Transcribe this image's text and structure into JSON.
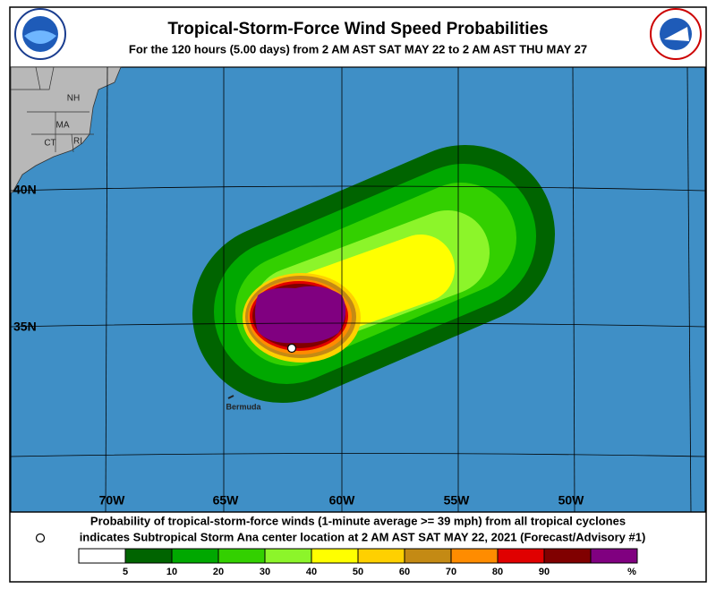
{
  "header": {
    "title": "Tropical-Storm-Force Wind Speed Probabilities",
    "subtitle": "For the 120 hours (5.00 days) from 2 AM AST SAT MAY 22 to 2 AM AST THU MAY 27"
  },
  "map": {
    "states": [
      "NH",
      "MA",
      "CT",
      "RI"
    ],
    "latitudes": [
      "40N",
      "35N"
    ],
    "longitudes": [
      "70W",
      "65W",
      "60W",
      "55W",
      "50W"
    ],
    "places": [
      "Bermuda"
    ]
  },
  "footer": {
    "line1": "Probability of tropical-storm-force winds (1-minute average >= 39 mph) from all tropical cyclones",
    "line2": "indicates Subtropical Storm Ana center location at 2 AM AST SAT MAY 22, 2021 (Forecast/Advisory #1)"
  },
  "legend": {
    "colors": [
      "#ffffff",
      "#006400",
      "#00a800",
      "#33d000",
      "#8cf52a",
      "#ffff00",
      "#ffd000",
      "#c48a14",
      "#ff8c00",
      "#e00000",
      "#800000",
      "#800080"
    ],
    "labels": [
      5,
      10,
      20,
      30,
      40,
      50,
      60,
      70,
      80,
      90
    ],
    "unit": "%"
  }
}
